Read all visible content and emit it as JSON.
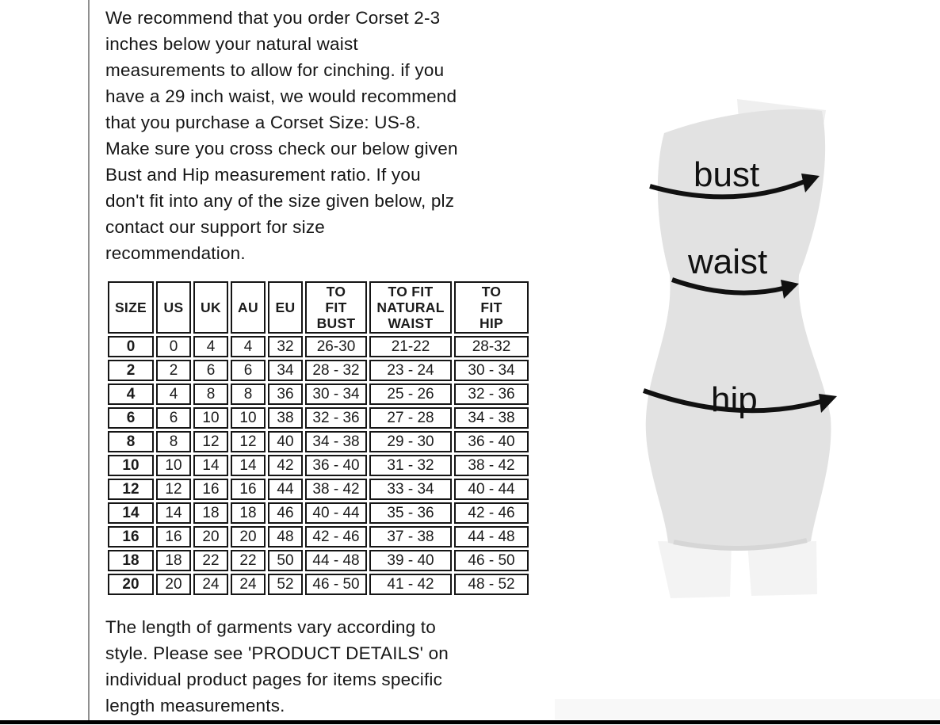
{
  "page": {
    "intro_paragraph": "We recommend that you order Corset 2-3\ninches below your natural waist\nmeasurements to allow for cinching. if you\nhave a 29 inch waist, we would recommend\nthat you purchase a Corset Size: US-8.\nMake sure you cross check our below given\nBust and Hip measurement ratio. If you\ndon't fit into any of the size given below, plz\ncontact our support for size\nrecommendation.",
    "footer_paragraph": "The length of garments vary according to\nstyle. Please see 'PRODUCT DETAILS' on\nindividual product pages for items specific\nlength measurements."
  },
  "size_table": {
    "columns": [
      "SIZE",
      "US",
      "UK",
      "AU",
      "EU",
      "TO\nFIT\nBUST",
      "TO FIT\nNATURAL\nWAIST",
      "TO\nFIT\nHIP"
    ],
    "rows": [
      [
        "0",
        "0",
        "4",
        "4",
        "32",
        "26-30",
        "21-22",
        "28-32"
      ],
      [
        "2",
        "2",
        "6",
        "6",
        "34",
        "28 - 32",
        "23 - 24",
        "30 - 34"
      ],
      [
        "4",
        "4",
        "8",
        "8",
        "36",
        "30 - 34",
        "25 - 26",
        "32 - 36"
      ],
      [
        "6",
        "6",
        "10",
        "10",
        "38",
        "32 - 36",
        "27 - 28",
        "34 - 38"
      ],
      [
        "8",
        "8",
        "12",
        "12",
        "40",
        "34 - 38",
        "29 - 30",
        "36 - 40"
      ],
      [
        "10",
        "10",
        "14",
        "14",
        "42",
        "36 - 40",
        "31 - 32",
        "38 - 42"
      ],
      [
        "12",
        "12",
        "16",
        "16",
        "44",
        "38 - 42",
        "33 - 34",
        "40 - 44"
      ],
      [
        "14",
        "14",
        "18",
        "18",
        "46",
        "40 - 44",
        "35 - 36",
        "42 - 46"
      ],
      [
        "16",
        "16",
        "20",
        "20",
        "48",
        "42 - 46",
        "37 - 38",
        "44 - 48"
      ],
      [
        "18",
        "18",
        "22",
        "22",
        "50",
        "44 - 48",
        "39 - 40",
        "46 - 50"
      ],
      [
        "20",
        "20",
        "24",
        "24",
        "52",
        "46 - 50",
        "41 - 42",
        "48 - 52"
      ]
    ]
  },
  "diagram": {
    "labels": {
      "bust": "bust",
      "waist": "waist",
      "hip": "hip"
    }
  },
  "colors": {
    "text": "#161616",
    "table_border": "#151515",
    "mannequin_body": "#e2e2e2",
    "mannequin_legs": "#f3f3f3",
    "arrow": "#111111",
    "divider": "#000000"
  }
}
